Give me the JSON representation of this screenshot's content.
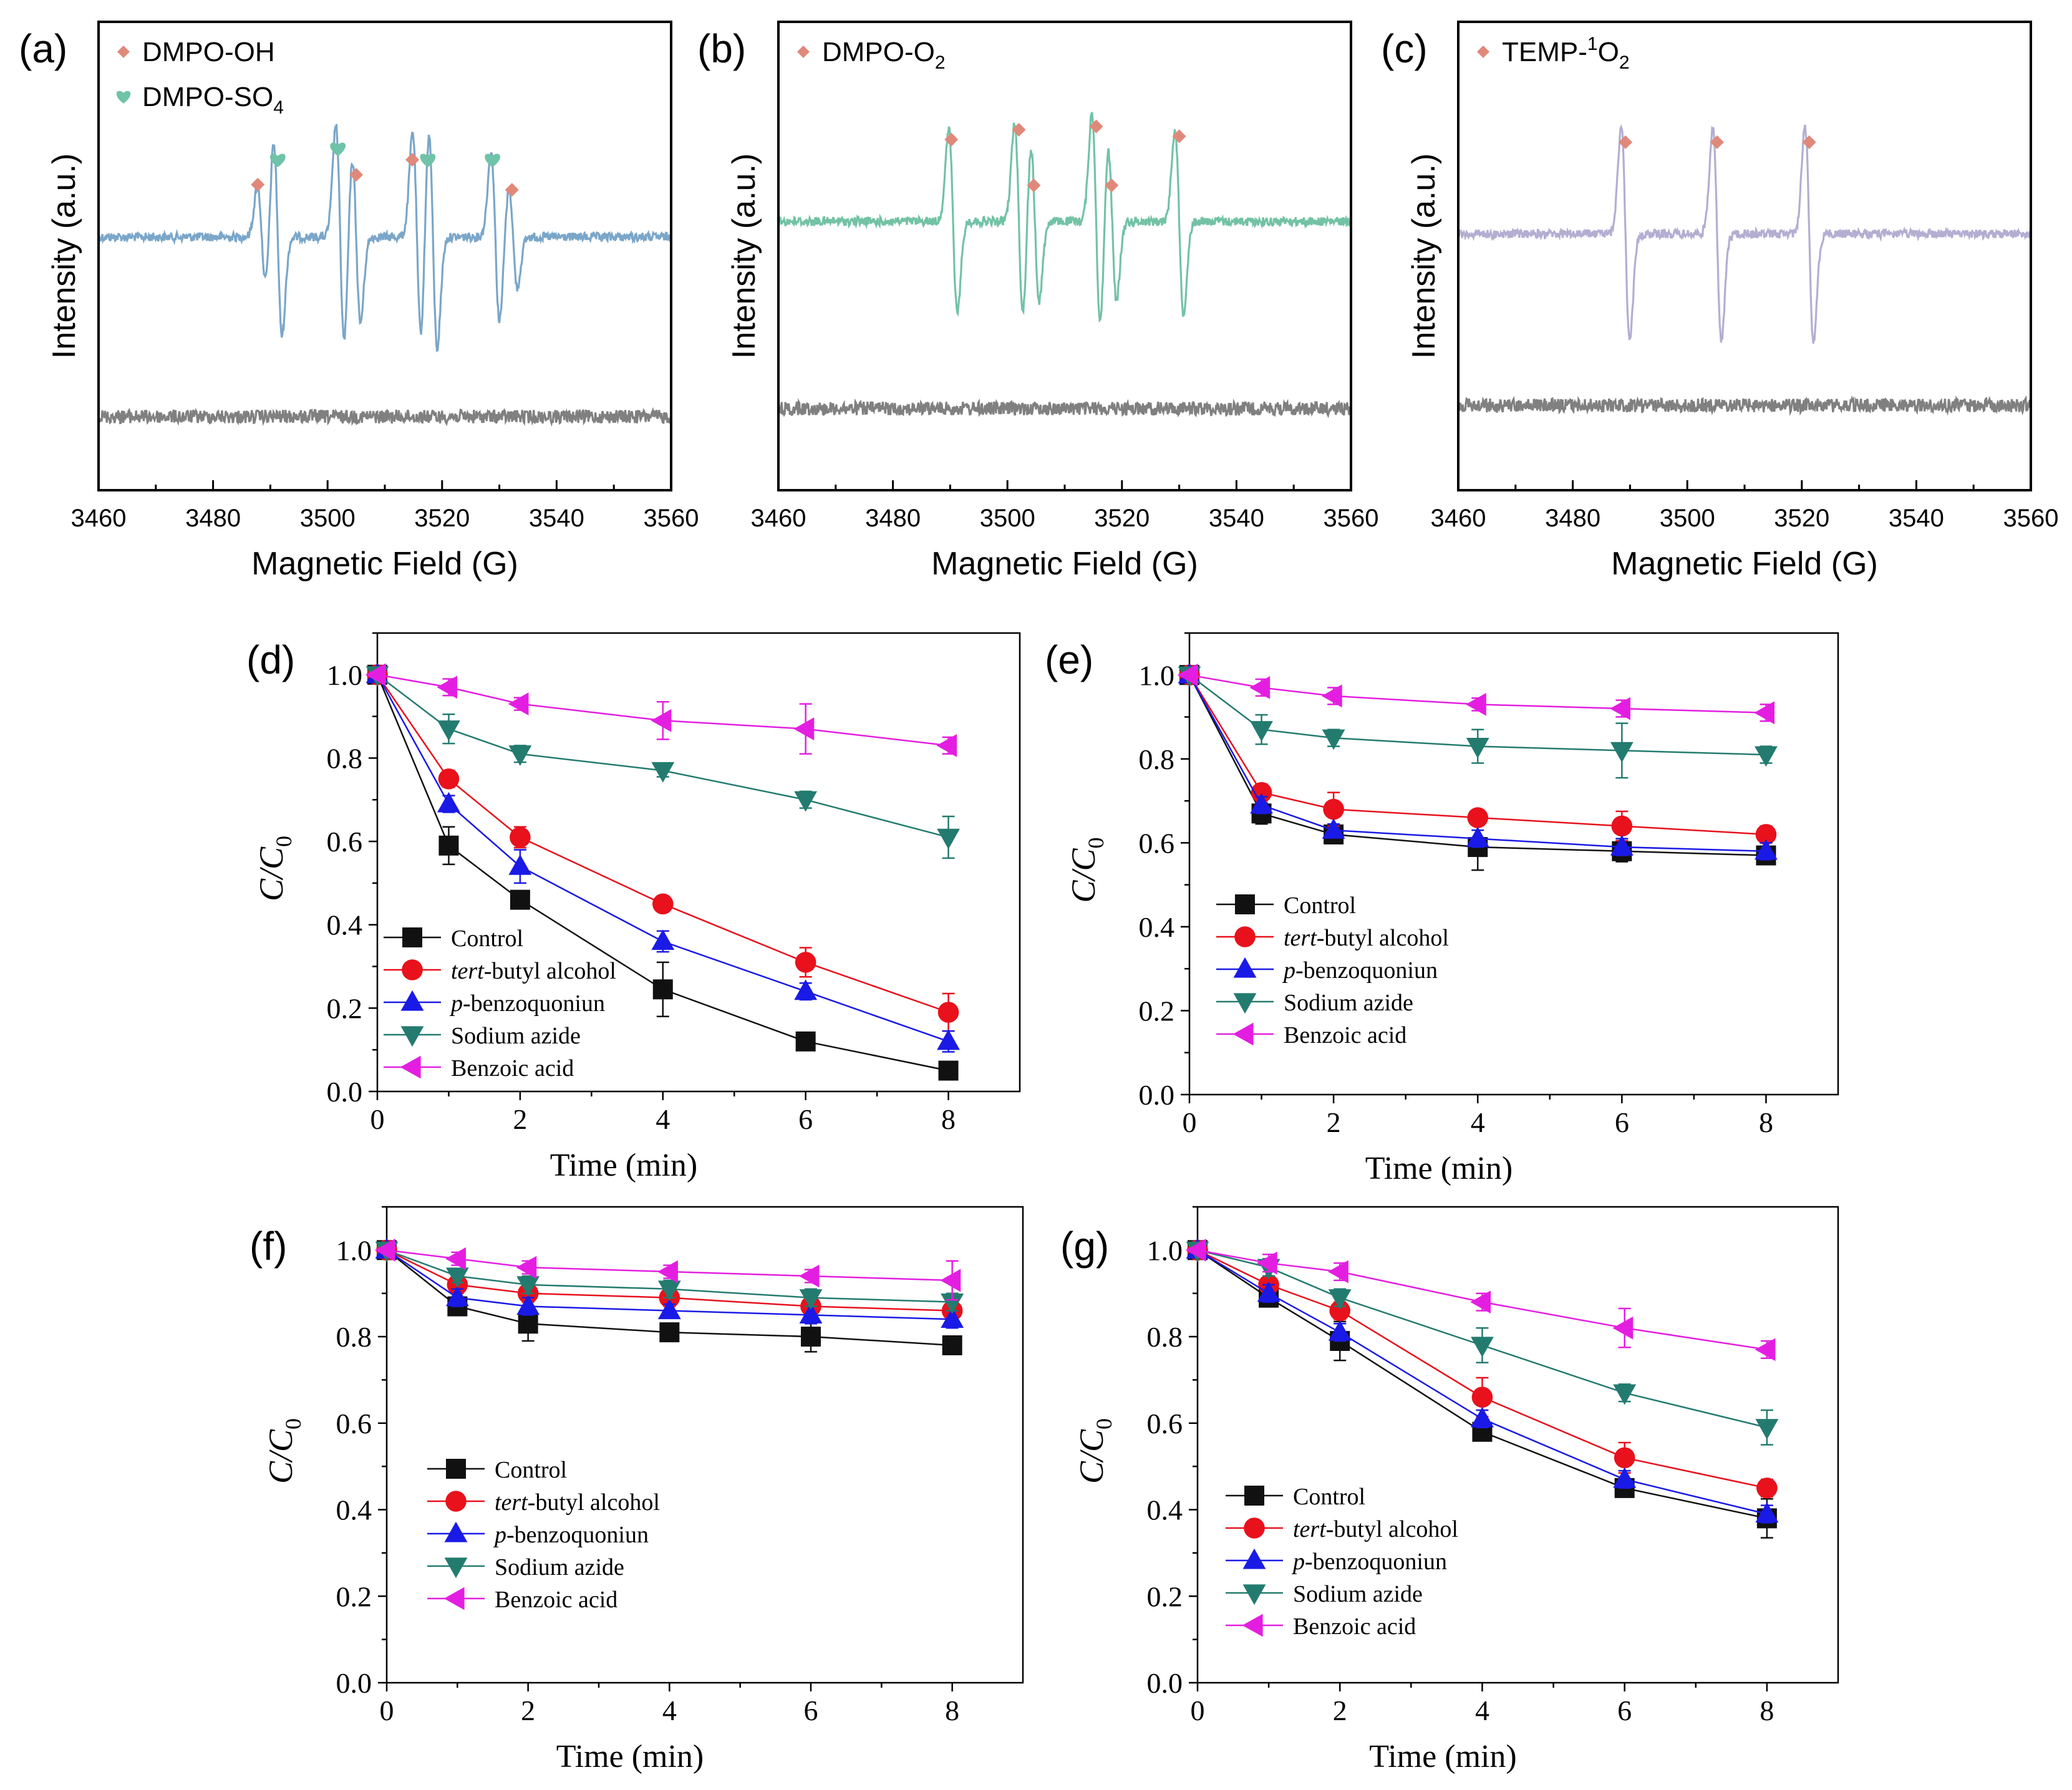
{
  "colors": {
    "epr_a": "#7aa6c9",
    "epr_b": "#73c2a6",
    "epr_c": "#b3aed2",
    "epr_blank": "#808080",
    "marker_diamond": "#e0897a",
    "marker_heart": "#6fc3a8",
    "control": "#111111",
    "tba": "#e8111c",
    "pbq": "#1a1ae6",
    "azide": "#237b6f",
    "benzoic": "#e41ee1"
  },
  "chart_data": [
    {
      "panel": "(a)",
      "type": "line",
      "title": "",
      "xlabel": "Magnetic Field (G)",
      "ylabel": "Intensity (a.u.)",
      "xlim": [
        3460,
        3560
      ],
      "xticks": [
        "3460",
        "3480",
        "3500",
        "3520",
        "3540",
        "3560"
      ],
      "legend": [
        {
          "label": "DMPO-OH",
          "marker": "diamond"
        },
        {
          "label": "DMPO-SO",
          "subscript": "4",
          "marker": "heart"
        }
      ],
      "series": [
        {
          "name": "Sample spectrum",
          "style": "epr",
          "color_key": "epr_a",
          "baseline": 0.0,
          "peaks": [
            {
              "x": 3488.5,
              "a": 0.8
            },
            {
              "x": 3491.3,
              "a": 1.55
            },
            {
              "x": 3502.2,
              "a": 1.75
            },
            {
              "x": 3505.0,
              "a": 1.35
            },
            {
              "x": 3515.6,
              "a": 1.65
            },
            {
              "x": 3518.4,
              "a": 1.75
            },
            {
              "x": 3529.3,
              "a": 1.35
            },
            {
              "x": 3532.4,
              "a": 0.8
            }
          ]
        },
        {
          "name": "Control spectrum",
          "style": "noise",
          "color_key": "epr_blank",
          "baseline": -1.0
        }
      ],
      "markers": [
        {
          "shape": "diamond",
          "x": 3487.8,
          "level": 0.8
        },
        {
          "shape": "heart",
          "x": 3491.3,
          "level": 1.18
        },
        {
          "shape": "heart",
          "x": 3501.8,
          "level": 1.35
        },
        {
          "shape": "diamond",
          "x": 3505.0,
          "level": 0.95
        },
        {
          "shape": "diamond",
          "x": 3514.8,
          "level": 1.18
        },
        {
          "shape": "heart",
          "x": 3517.5,
          "level": 1.18
        },
        {
          "shape": "heart",
          "x": 3528.8,
          "level": 1.18
        },
        {
          "shape": "diamond",
          "x": 3532.2,
          "level": 0.72
        }
      ]
    },
    {
      "panel": "(b)",
      "type": "line",
      "title": "",
      "xlabel": "Magnetic Field (G)",
      "ylabel": "Intensity (a.u.)",
      "xlim": [
        3460,
        3560
      ],
      "xticks": [
        "3460",
        "3480",
        "3500",
        "3520",
        "3540",
        "3560"
      ],
      "legend": [
        {
          "label": "DMPO-O",
          "subscript": "2",
          "marker": "diamond"
        }
      ],
      "series": [
        {
          "name": "Sample spectrum",
          "style": "epr",
          "color_key": "epr_b",
          "baseline": 0.0,
          "peaks": [
            {
              "x": 3490.5,
              "a": 1.45
            },
            {
              "x": 3502.0,
              "a": 1.55
            },
            {
              "x": 3504.8,
              "a": 1.25
            },
            {
              "x": 3515.5,
              "a": 1.7
            },
            {
              "x": 3518.3,
              "a": 1.25
            },
            {
              "x": 3530.0,
              "a": 1.45
            }
          ]
        },
        {
          "name": "Control spectrum",
          "style": "noise",
          "color_key": "epr_blank",
          "baseline": -1.0
        }
      ],
      "markers": [
        {
          "shape": "diamond",
          "x": 3490.2,
          "level": 1.25
        },
        {
          "shape": "diamond",
          "x": 3502.0,
          "level": 1.4
        },
        {
          "shape": "diamond",
          "x": 3504.6,
          "level": 0.55
        },
        {
          "shape": "diamond",
          "x": 3515.5,
          "level": 1.45
        },
        {
          "shape": "diamond",
          "x": 3518.2,
          "level": 0.55
        },
        {
          "shape": "diamond",
          "x": 3530.0,
          "level": 1.3
        }
      ]
    },
    {
      "panel": "(c)",
      "type": "line",
      "title": "",
      "xlabel": "Magnetic Field (G)",
      "ylabel": "Intensity (a.u.)",
      "xlim": [
        3460,
        3560
      ],
      "xticks": [
        "3460",
        "3480",
        "3500",
        "3520",
        "3540",
        "3560"
      ],
      "legend": [
        {
          "label": "TEMP-",
          "superscript": "1",
          "after": "O",
          "subscript": "2",
          "marker": "diamond"
        }
      ],
      "series": [
        {
          "name": "Sample spectrum",
          "style": "epr",
          "color_key": "epr_c",
          "baseline": 0.0,
          "peaks": [
            {
              "x": 3489.2,
              "a": 1.7
            },
            {
              "x": 3505.2,
              "a": 1.7
            },
            {
              "x": 3521.3,
              "a": 1.7
            }
          ]
        },
        {
          "name": "Control spectrum",
          "style": "noise",
          "color_key": "epr_blank",
          "baseline": -1.0
        }
      ],
      "markers": [
        {
          "shape": "diamond",
          "x": 3489.2,
          "level": 1.4
        },
        {
          "shape": "diamond",
          "x": 3505.2,
          "level": 1.4
        },
        {
          "shape": "diamond",
          "x": 3521.3,
          "level": 1.4
        }
      ]
    },
    {
      "panel": "(d)",
      "type": "scatter",
      "title": "",
      "xlabel": "Time (min)",
      "ylabel": "C/C",
      "ylabel_subscript": "0",
      "xlim": [
        0,
        9
      ],
      "ylim": [
        0,
        1.1
      ],
      "xticks": [
        "0",
        "2",
        "4",
        "6",
        "8"
      ],
      "yticks": [
        "0.0",
        "0.2",
        "0.4",
        "0.6",
        "0.8",
        "1.0"
      ],
      "x": [
        0,
        1,
        2,
        4,
        6,
        8
      ],
      "series": [
        {
          "name": "Control",
          "italic_prefix": "",
          "marker": "square",
          "color_key": "control",
          "values": [
            1.0,
            0.59,
            0.46,
            0.245,
            0.12,
            0.05
          ],
          "errors": [
            0,
            0.045,
            0.02,
            0.065,
            0.015,
            0.015
          ]
        },
        {
          "name": "tert-butyl alcohol",
          "italic_prefix": "tert",
          "marker": "circle",
          "color_key": "tba",
          "values": [
            1.0,
            0.75,
            0.61,
            0.45,
            0.31,
            0.19
          ],
          "errors": [
            0,
            0.02,
            0.025,
            0.015,
            0.035,
            0.045
          ]
        },
        {
          "name": "p-benzoquoniun",
          "italic_prefix": "p",
          "marker": "triangle-up",
          "color_key": "pbq",
          "values": [
            1.0,
            0.69,
            0.54,
            0.36,
            0.24,
            0.12
          ],
          "errors": [
            0,
            0.02,
            0.04,
            0.025,
            0.02,
            0.025
          ]
        },
        {
          "name": "Sodium azide",
          "italic_prefix": "",
          "marker": "triangle-down",
          "color_key": "azide",
          "values": [
            1.0,
            0.87,
            0.81,
            0.77,
            0.7,
            0.61
          ],
          "errors": [
            0,
            0.035,
            0.02,
            0.015,
            0.02,
            0.05
          ]
        },
        {
          "name": "Benzoic acid",
          "italic_prefix": "",
          "marker": "triangle-left",
          "color_key": "benzoic",
          "values": [
            1.0,
            0.97,
            0.93,
            0.89,
            0.87,
            0.83
          ],
          "errors": [
            0,
            0.02,
            0.015,
            0.045,
            0.06,
            0.02
          ]
        }
      ],
      "legend_position": "bottom-left"
    },
    {
      "panel": "(e)",
      "type": "scatter",
      "title": "",
      "xlabel": "Time (min)",
      "ylabel": "C/C",
      "ylabel_subscript": "0",
      "xlim": [
        0,
        9
      ],
      "ylim": [
        0,
        1.1
      ],
      "xticks": [
        "0",
        "2",
        "4",
        "6",
        "8"
      ],
      "yticks": [
        "0.0",
        "0.2",
        "0.4",
        "0.6",
        "0.8",
        "1.0"
      ],
      "x": [
        0,
        1,
        2,
        4,
        6,
        8
      ],
      "series": [
        {
          "name": "Control",
          "italic_prefix": "",
          "marker": "square",
          "color_key": "control",
          "values": [
            1.0,
            0.67,
            0.62,
            0.59,
            0.58,
            0.57
          ],
          "errors": [
            0,
            0.025,
            0.02,
            0.055,
            0.025,
            0.02
          ]
        },
        {
          "name": "tert-butyl alcohol",
          "italic_prefix": "tert",
          "marker": "circle",
          "color_key": "tba",
          "values": [
            1.0,
            0.72,
            0.68,
            0.66,
            0.64,
            0.62
          ],
          "errors": [
            0,
            0.02,
            0.04,
            0.015,
            0.035,
            0.02
          ]
        },
        {
          "name": "p-benzoquoniun",
          "italic_prefix": "p",
          "marker": "triangle-up",
          "color_key": "pbq",
          "values": [
            1.0,
            0.69,
            0.63,
            0.61,
            0.59,
            0.58
          ],
          "errors": [
            0,
            0.02,
            0.015,
            0.02,
            0.02,
            0.02
          ]
        },
        {
          "name": "Sodium azide",
          "italic_prefix": "",
          "marker": "triangle-down",
          "color_key": "azide",
          "values": [
            1.0,
            0.87,
            0.85,
            0.83,
            0.82,
            0.81
          ],
          "errors": [
            0,
            0.035,
            0.02,
            0.04,
            0.065,
            0.02
          ]
        },
        {
          "name": "Benzoic acid",
          "italic_prefix": "",
          "marker": "triangle-left",
          "color_key": "benzoic",
          "values": [
            1.0,
            0.97,
            0.95,
            0.93,
            0.92,
            0.91
          ],
          "errors": [
            0,
            0.02,
            0.02,
            0.015,
            0.02,
            0.02
          ]
        }
      ],
      "legend_position": "middle-left"
    },
    {
      "panel": "(f)",
      "type": "scatter",
      "title": "",
      "xlabel": "Time (min)",
      "ylabel": "C/C",
      "ylabel_subscript": "0",
      "xlim": [
        0,
        9
      ],
      "ylim": [
        0,
        1.1
      ],
      "xticks": [
        "0",
        "2",
        "4",
        "6",
        "8"
      ],
      "yticks": [
        "0.0",
        "0.2",
        "0.4",
        "0.6",
        "0.8",
        "1.0"
      ],
      "x": [
        0,
        1,
        2,
        4,
        6,
        8
      ],
      "series": [
        {
          "name": "Control",
          "italic_prefix": "",
          "marker": "square",
          "color_key": "control",
          "values": [
            1.0,
            0.87,
            0.83,
            0.81,
            0.8,
            0.78
          ],
          "errors": [
            0,
            0.015,
            0.04,
            0.02,
            0.035,
            0.015
          ]
        },
        {
          "name": "tert-butyl alcohol",
          "italic_prefix": "tert",
          "marker": "circle",
          "color_key": "tba",
          "values": [
            1.0,
            0.92,
            0.9,
            0.89,
            0.87,
            0.86
          ],
          "errors": [
            0,
            0.02,
            0.02,
            0.02,
            0.02,
            0.02
          ]
        },
        {
          "name": "p-benzoquoniun",
          "italic_prefix": "p",
          "marker": "triangle-up",
          "color_key": "pbq",
          "values": [
            1.0,
            0.89,
            0.87,
            0.86,
            0.85,
            0.84
          ],
          "errors": [
            0,
            0.02,
            0.02,
            0.015,
            0.02,
            0.02
          ]
        },
        {
          "name": "Sodium azide",
          "italic_prefix": "",
          "marker": "triangle-down",
          "color_key": "azide",
          "values": [
            1.0,
            0.94,
            0.92,
            0.91,
            0.89,
            0.88
          ],
          "errors": [
            0,
            0.015,
            0.02,
            0.02,
            0.02,
            0.02
          ]
        },
        {
          "name": "Benzoic acid",
          "italic_prefix": "",
          "marker": "triangle-left",
          "color_key": "benzoic",
          "values": [
            1.0,
            0.98,
            0.96,
            0.95,
            0.94,
            0.93
          ],
          "errors": [
            0,
            0.015,
            0.015,
            0.015,
            0.015,
            0.045
          ]
        }
      ],
      "legend_position": "lower-left"
    },
    {
      "panel": "(g)",
      "type": "scatter",
      "title": "",
      "xlabel": "Time (min)",
      "ylabel": "C/C",
      "ylabel_subscript": "0",
      "xlim": [
        0,
        9
      ],
      "ylim": [
        0,
        1.1
      ],
      "xticks": [
        "0",
        "2",
        "4",
        "6",
        "8"
      ],
      "yticks": [
        "0.0",
        "0.2",
        "0.4",
        "0.6",
        "0.8",
        "1.0"
      ],
      "x": [
        0,
        1,
        2,
        4,
        6,
        8
      ],
      "series": [
        {
          "name": "Control",
          "italic_prefix": "",
          "marker": "square",
          "color_key": "control",
          "values": [
            1.0,
            0.89,
            0.79,
            0.58,
            0.45,
            0.38
          ],
          "errors": [
            0,
            0.02,
            0.045,
            0.02,
            0.015,
            0.045
          ]
        },
        {
          "name": "tert-butyl alcohol",
          "italic_prefix": "tert",
          "marker": "circle",
          "color_key": "tba",
          "values": [
            1.0,
            0.92,
            0.86,
            0.66,
            0.52,
            0.45
          ],
          "errors": [
            0,
            0.02,
            0.02,
            0.045,
            0.035,
            0.02
          ]
        },
        {
          "name": "p-benzoquoniun",
          "italic_prefix": "p",
          "marker": "triangle-up",
          "color_key": "pbq",
          "values": [
            1.0,
            0.9,
            0.81,
            0.61,
            0.47,
            0.39
          ],
          "errors": [
            0,
            0.02,
            0.02,
            0.02,
            0.02,
            0.02
          ]
        },
        {
          "name": "Sodium azide",
          "italic_prefix": "",
          "marker": "triangle-down",
          "color_key": "azide",
          "values": [
            1.0,
            0.96,
            0.89,
            0.78,
            0.67,
            0.59
          ],
          "errors": [
            0,
            0.02,
            0.02,
            0.04,
            0.02,
            0.04
          ]
        },
        {
          "name": "Benzoic acid",
          "italic_prefix": "",
          "marker": "triangle-left",
          "color_key": "benzoic",
          "values": [
            1.0,
            0.97,
            0.95,
            0.88,
            0.82,
            0.77
          ],
          "errors": [
            0,
            0.02,
            0.02,
            0.02,
            0.045,
            0.02
          ]
        }
      ],
      "legend_position": "bottom-left"
    }
  ]
}
